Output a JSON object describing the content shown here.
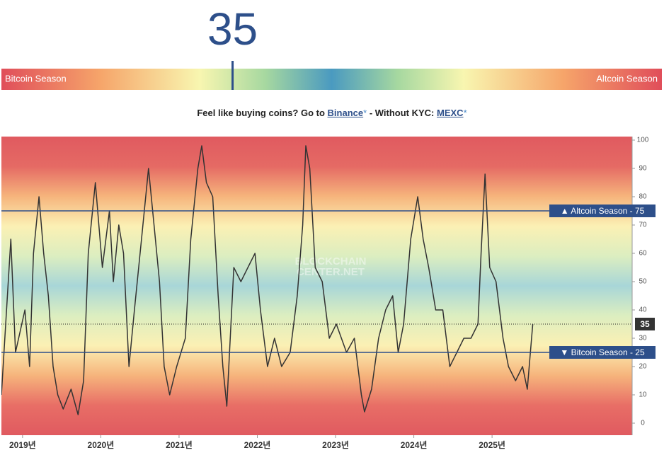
{
  "gauge": {
    "left_label": "Bitcoin Season",
    "right_label": "Altcoin Season"
  },
  "promo": {
    "text1": "Feel like buying coins? Go to",
    "link1": "Binance",
    "mark": "*",
    "text2": "- Without KYC:",
    "link2": "MEXC"
  },
  "chart_data": {
    "type": "line",
    "watermark": [
      "BLOCKCHAIN",
      "CENTER.NET"
    ],
    "current": 35,
    "color": "#333333",
    "x": [
      2018.73,
      2018.85,
      2018.91,
      2019.03,
      2019.09,
      2019.14,
      2019.21,
      2019.27,
      2019.33,
      2019.39,
      2019.45,
      2019.52,
      2019.62,
      2019.71,
      2019.78,
      2019.84,
      2019.93,
      2020.02,
      2020.11,
      2020.16,
      2020.23,
      2020.29,
      2020.36,
      2020.43,
      2020.52,
      2020.61,
      2020.68,
      2020.75,
      2020.81,
      2020.88,
      2020.97,
      2021.08,
      2021.15,
      2021.24,
      2021.29,
      2021.35,
      2021.43,
      2021.5,
      2021.56,
      2021.61,
      2021.7,
      2021.79,
      2021.88,
      2021.97,
      2022.04,
      2022.13,
      2022.22,
      2022.31,
      2022.42,
      2022.51,
      2022.58,
      2022.62,
      2022.67,
      2022.74,
      2022.83,
      2022.92,
      2023.01,
      2023.14,
      2023.24,
      2023.33,
      2023.37,
      2023.46,
      2023.55,
      2023.64,
      2023.73,
      2023.8,
      2023.87,
      2023.96,
      2024.05,
      2024.12,
      2024.19,
      2024.28,
      2024.37,
      2024.46,
      2024.55,
      2024.64,
      2024.73,
      2024.82,
      2024.86,
      2024.91,
      2024.97,
      2025.05,
      2025.14,
      2025.21,
      2025.3,
      2025.39,
      2025.45,
      2025.52
    ],
    "values": [
      10,
      65,
      25,
      40,
      20,
      60,
      80,
      60,
      45,
      20,
      10,
      5,
      12,
      3,
      15,
      60,
      85,
      55,
      75,
      50,
      70,
      60,
      20,
      40,
      65,
      90,
      70,
      50,
      20,
      10,
      20,
      30,
      65,
      90,
      98,
      85,
      80,
      45,
      20,
      6,
      55,
      50,
      55,
      60,
      40,
      20,
      30,
      20,
      25,
      45,
      70,
      98,
      90,
      55,
      50,
      30,
      35,
      25,
      30,
      10,
      4,
      12,
      30,
      40,
      45,
      25,
      35,
      65,
      80,
      65,
      55,
      40,
      40,
      20,
      25,
      30,
      30,
      35,
      60,
      88,
      55,
      50,
      30,
      20,
      15,
      20,
      12,
      35
    ],
    "xlim": [
      2018.73,
      2026.79
    ],
    "xticks": [
      {
        "value": 2019,
        "label": "2019년"
      },
      {
        "value": 2020,
        "label": "2020년"
      },
      {
        "value": 2021,
        "label": "2021년"
      },
      {
        "value": 2022,
        "label": "2022년"
      },
      {
        "value": 2023,
        "label": "2023년"
      },
      {
        "value": 2024,
        "label": "2024년"
      },
      {
        "value": 2025,
        "label": "2025년"
      }
    ],
    "ylim": [
      -4.25,
      101.25
    ],
    "yticks": [
      0,
      10,
      20,
      30,
      40,
      50,
      60,
      70,
      80,
      90,
      100
    ],
    "reference_lines": [
      {
        "value": 75,
        "label": "▲ Altcoin Season - 75"
      },
      {
        "value": 25,
        "label": "▼ Bitcoin Season - 25"
      }
    ]
  }
}
